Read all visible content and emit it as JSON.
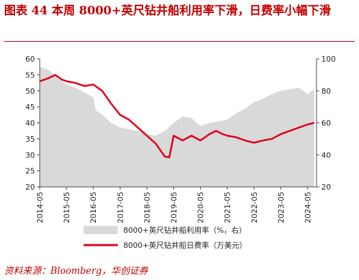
{
  "figure": {
    "title": "图表 44   本周 8000+英尺钻井船利用率下滑，日费率小幅下滑",
    "source": "资料来源：Bloomberg，华创证券"
  },
  "chart_data": {
    "type": "line",
    "subtype": "dual-axis area + line",
    "x_tick_labels": [
      "2014-05",
      "2015-05",
      "2016-05",
      "2017-05",
      "2018-05",
      "2019-05",
      "2020-05",
      "2021-05",
      "2022-05",
      "2023-05",
      "2024-05"
    ],
    "left_axis": {
      "ylim": [
        20,
        60
      ],
      "ticks": [
        20,
        25,
        30,
        35,
        40,
        45,
        50,
        55,
        60
      ]
    },
    "right_axis": {
      "ylim": [
        20,
        100
      ],
      "ticks": [
        20,
        40,
        60,
        80,
        100
      ]
    },
    "grid": false,
    "legend_position": "bottom",
    "series": [
      {
        "name": "8000+英尺钻井船利用率（%，右）",
        "axis": "right",
        "kind": "area",
        "color": "#d9d9d9",
        "points": [
          [
            "2014-05",
            95
          ],
          [
            "2014-09",
            93
          ],
          [
            "2015-01",
            88
          ],
          [
            "2015-05",
            84
          ],
          [
            "2015-09",
            82
          ],
          [
            "2016-01",
            79
          ],
          [
            "2016-05",
            76
          ],
          [
            "2016-06",
            68
          ],
          [
            "2016-09",
            65
          ],
          [
            "2017-01",
            60
          ],
          [
            "2017-05",
            57
          ],
          [
            "2017-09",
            56
          ],
          [
            "2018-01",
            55
          ],
          [
            "2018-05",
            53
          ],
          [
            "2018-09",
            52
          ],
          [
            "2019-01",
            55
          ],
          [
            "2019-05",
            60
          ],
          [
            "2019-09",
            64
          ],
          [
            "2020-01",
            63
          ],
          [
            "2020-05",
            58
          ],
          [
            "2020-09",
            60
          ],
          [
            "2021-01",
            61
          ],
          [
            "2021-05",
            62
          ],
          [
            "2021-09",
            66
          ],
          [
            "2022-01",
            69
          ],
          [
            "2022-05",
            73
          ],
          [
            "2022-09",
            75
          ],
          [
            "2023-01",
            78
          ],
          [
            "2023-05",
            80
          ],
          [
            "2023-09",
            81
          ],
          [
            "2024-01",
            82
          ],
          [
            "2024-05",
            78
          ],
          [
            "2024-08",
            81
          ]
        ]
      },
      {
        "name": "8000+英尺钻井船日费率（万美元）",
        "axis": "left",
        "kind": "line",
        "color": "#e0001b",
        "points": [
          [
            "2014-05",
            53
          ],
          [
            "2014-09",
            54
          ],
          [
            "2014-12",
            55
          ],
          [
            "2015-03",
            53.5
          ],
          [
            "2015-05",
            53
          ],
          [
            "2015-09",
            52.5
          ],
          [
            "2016-01",
            51.5
          ],
          [
            "2016-05",
            52
          ],
          [
            "2016-09",
            50
          ],
          [
            "2017-01",
            46
          ],
          [
            "2017-05",
            42.5
          ],
          [
            "2017-09",
            41
          ],
          [
            "2018-01",
            38.5
          ],
          [
            "2018-05",
            36
          ],
          [
            "2018-09",
            33.5
          ],
          [
            "2019-01",
            29.5
          ],
          [
            "2019-03",
            29.2
          ],
          [
            "2019-05",
            36
          ],
          [
            "2019-09",
            34.5
          ],
          [
            "2020-01",
            36
          ],
          [
            "2020-05",
            34.5
          ],
          [
            "2020-09",
            36.5
          ],
          [
            "2020-12",
            37.5
          ],
          [
            "2021-03",
            36.5
          ],
          [
            "2021-05",
            36
          ],
          [
            "2021-09",
            35.5
          ],
          [
            "2022-01",
            34.5
          ],
          [
            "2022-05",
            33.8
          ],
          [
            "2022-09",
            34.5
          ],
          [
            "2023-01",
            35
          ],
          [
            "2023-05",
            36.5
          ],
          [
            "2023-09",
            37.5
          ],
          [
            "2024-01",
            38.5
          ],
          [
            "2024-05",
            39.5
          ],
          [
            "2024-08",
            40
          ]
        ]
      }
    ]
  }
}
